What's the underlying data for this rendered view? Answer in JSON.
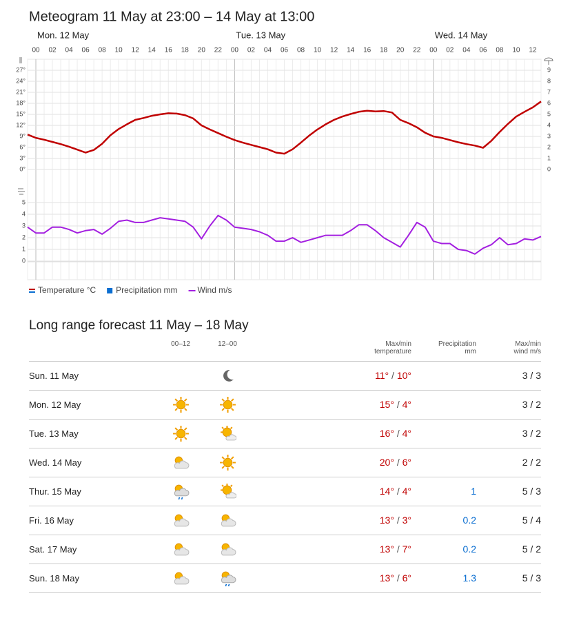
{
  "chart_data": {
    "type": "line",
    "title": "Meteogram 11 May at 23:00 – 14 May at 13:00",
    "day_labels": [
      "Mon. 12 May",
      "Tue. 13 May",
      "Wed. 14 May"
    ],
    "categories": [
      null,
      "00",
      null,
      "02",
      null,
      "04",
      null,
      "06",
      null,
      "08",
      null,
      "10",
      null,
      "12",
      null,
      "14",
      null,
      "16",
      null,
      "18",
      null,
      "20",
      null,
      "22",
      null,
      "00",
      null,
      "02",
      null,
      "04",
      null,
      "06",
      null,
      "08",
      null,
      "10",
      null,
      "12",
      null,
      "14",
      null,
      "16",
      null,
      "18",
      null,
      "20",
      null,
      "22",
      null,
      "00",
      null,
      "02",
      null,
      "04",
      null,
      "06",
      null,
      "08",
      null,
      "10",
      null,
      "12",
      null
    ],
    "series": [
      {
        "name": "Temperature °C",
        "color": "#c00000",
        "axis": "y",
        "values": [
          9.5,
          8.6,
          8.1,
          7.5,
          6.9,
          6.2,
          5.4,
          4.6,
          5.3,
          7.0,
          9.3,
          11.0,
          12.3,
          13.5,
          14.0,
          14.6,
          15.0,
          15.3,
          15.2,
          14.8,
          13.9,
          12.0,
          10.9,
          9.9,
          8.9,
          8.0,
          7.3,
          6.7,
          6.1,
          5.5,
          4.6,
          4.3,
          5.5,
          7.3,
          9.2,
          10.9,
          12.3,
          13.5,
          14.4,
          15.1,
          15.7,
          16.0,
          15.8,
          15.9,
          15.5,
          13.5,
          12.6,
          11.5,
          10.0,
          9.0,
          8.6,
          8.0,
          7.4,
          6.9,
          6.5,
          5.9,
          7.8,
          10.2,
          12.4,
          14.4,
          15.7,
          16.9,
          18.5
        ]
      },
      {
        "name": "Precipitation mm",
        "color": "#0a6ed1",
        "axis": "y2",
        "values": [
          0,
          0,
          0,
          0,
          0,
          0,
          0,
          0,
          0,
          0,
          0,
          0,
          0,
          0,
          0,
          0,
          0,
          0,
          0,
          0,
          0,
          0,
          0,
          0,
          0,
          0,
          0,
          0,
          0,
          0,
          0,
          0,
          0,
          0,
          0,
          0,
          0,
          0,
          0,
          0,
          0,
          0,
          0,
          0,
          0,
          0,
          0,
          0,
          0,
          0,
          0,
          0,
          0,
          0,
          0,
          0,
          0,
          0,
          0,
          0,
          0,
          0,
          0
        ]
      },
      {
        "name": "Wind m/s",
        "color": "#a31fe0",
        "axis": "wind",
        "values": [
          2.9,
          2.4,
          2.4,
          2.9,
          2.9,
          2.7,
          2.4,
          2.6,
          2.7,
          2.3,
          2.8,
          3.4,
          3.5,
          3.3,
          3.3,
          3.5,
          3.7,
          3.6,
          3.5,
          3.4,
          2.9,
          1.9,
          3.0,
          3.9,
          3.5,
          2.9,
          2.8,
          2.7,
          2.5,
          2.2,
          1.7,
          1.7,
          2.0,
          1.6,
          1.8,
          2.0,
          2.2,
          2.2,
          2.2,
          2.6,
          3.1,
          3.1,
          2.6,
          2.0,
          1.6,
          1.2,
          2.2,
          3.3,
          2.9,
          1.7,
          1.5,
          1.5,
          1.0,
          0.9,
          0.6,
          1.1,
          1.4,
          2.0,
          1.4,
          1.5,
          1.9,
          1.8,
          2.1
        ]
      }
    ],
    "ylim": [
      0,
      27
    ],
    "yticks": [
      {
        "value": 0,
        "label": "0°"
      },
      {
        "value": 3,
        "label": "3°"
      },
      {
        "value": 6,
        "label": "6°"
      },
      {
        "value": 9,
        "label": "9°"
      },
      {
        "value": 12,
        "label": "12°"
      },
      {
        "value": 15,
        "label": "15°"
      },
      {
        "value": 18,
        "label": "18°"
      },
      {
        "value": 21,
        "label": "21°"
      },
      {
        "value": 24,
        "label": "24°"
      },
      {
        "value": 27,
        "label": "27°"
      }
    ],
    "y2lim": [
      0,
      9
    ],
    "y2ticks": [
      0,
      1,
      2,
      3,
      4,
      5,
      6,
      7,
      8,
      9
    ],
    "wind_ylim": [
      0,
      5
    ],
    "wind_yticks": [
      0,
      1,
      2,
      3,
      4,
      5
    ],
    "grid": true
  },
  "table": {
    "title": "Long range forecast 11 May – 18 May",
    "headers": {
      "period1": "00–12",
      "period2": "12–00",
      "temperature": "Max/min temperature",
      "precipitation": "Precipitation mm",
      "wind": "Max/min wind m/s"
    },
    "rows": [
      {
        "day": "Sun. 11 May",
        "max": "11°",
        "min": "10°",
        "wind": "3 / 3"
      },
      {
        "day": "Mon. 12 May",
        "max": "15°",
        "min": "4°",
        "wind": "3 / 2"
      },
      {
        "day": "Tue. 13 May",
        "max": "16°",
        "min": "4°",
        "wind": "3 / 2"
      },
      {
        "day": "Wed. 14 May",
        "max": "20°",
        "min": "6°",
        "wind": "2 / 2"
      },
      {
        "day": "Thur. 15 May",
        "max": "14°",
        "min": "4°",
        "precip": "1",
        "wind": "5 / 3"
      },
      {
        "day": "Fri. 16 May",
        "max": "13°",
        "min": "3°",
        "precip": "0.2",
        "wind": "5 / 4"
      },
      {
        "day": "Sat. 17 May",
        "max": "13°",
        "min": "7°",
        "precip": "0.2",
        "wind": "5 / 2"
      },
      {
        "day": "Sun. 18 May",
        "max": "13°",
        "min": "6°",
        "precip": "1.3",
        "wind": "5 / 3"
      }
    ]
  }
}
